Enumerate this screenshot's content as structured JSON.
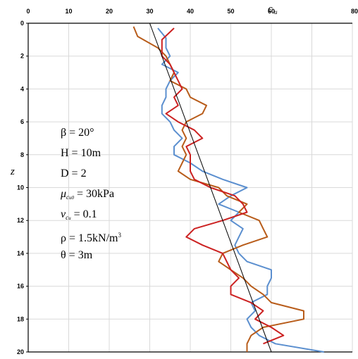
{
  "chart_data": {
    "type": "line",
    "xlabel": "c",
    "xlabel_sub": "u",
    "ylabel": "z",
    "xlim": [
      0,
      80
    ],
    "ylim": [
      0,
      20
    ],
    "y_inverted": true,
    "x_axis_position": "top",
    "x_ticks": [
      "0",
      "10",
      "20",
      "30",
      "40",
      "50",
      "60",
      "80"
    ],
    "y_ticks": [
      "0",
      "2",
      "4",
      "6",
      "8",
      "10",
      "12",
      "14",
      "16",
      "18",
      "20"
    ],
    "grid": true,
    "series": [
      {
        "color": "#5b8fcf",
        "points": [
          [
            32,
            0.3
          ],
          [
            34,
            0.9
          ],
          [
            34,
            1.5
          ],
          [
            35,
            2
          ],
          [
            33,
            2.5
          ],
          [
            37,
            3
          ],
          [
            35,
            3.5
          ],
          [
            34,
            4
          ],
          [
            34,
            4.5
          ],
          [
            33,
            5
          ],
          [
            33,
            5.5
          ],
          [
            35,
            6
          ],
          [
            36,
            6.5
          ],
          [
            38,
            7
          ],
          [
            36,
            7.5
          ],
          [
            36,
            8
          ],
          [
            40,
            8.5
          ],
          [
            43,
            9
          ],
          [
            48,
            9.5
          ],
          [
            54,
            10
          ],
          [
            50,
            10.5
          ],
          [
            47,
            11
          ],
          [
            52,
            11.5
          ],
          [
            50,
            12
          ],
          [
            53,
            12.5
          ],
          [
            52,
            13
          ],
          [
            51,
            13.5
          ],
          [
            52,
            14
          ],
          [
            54,
            14.5
          ],
          [
            60,
            15
          ],
          [
            60,
            15.5
          ],
          [
            59,
            16
          ],
          [
            59,
            16.5
          ],
          [
            55,
            17
          ],
          [
            56,
            17.5
          ],
          [
            54,
            18
          ],
          [
            55,
            18.5
          ],
          [
            57,
            19
          ],
          [
            61,
            19.5
          ],
          [
            73,
            20
          ]
        ]
      },
      {
        "color": "#b85c1a",
        "points": [
          [
            26,
            0.2
          ],
          [
            27,
            0.8
          ],
          [
            32,
            1.5
          ],
          [
            34,
            2
          ],
          [
            35,
            2.5
          ],
          [
            36,
            3
          ],
          [
            35,
            3.5
          ],
          [
            39,
            4
          ],
          [
            40,
            4.5
          ],
          [
            44,
            5
          ],
          [
            43,
            5.5
          ],
          [
            39,
            6
          ],
          [
            38,
            6.5
          ],
          [
            39,
            7
          ],
          [
            38,
            7.5
          ],
          [
            39,
            8
          ],
          [
            38,
            8.5
          ],
          [
            37,
            9
          ],
          [
            40,
            9.5
          ],
          [
            47,
            10
          ],
          [
            49,
            10.5
          ],
          [
            54,
            11
          ],
          [
            52,
            11.5
          ],
          [
            57,
            12
          ],
          [
            58,
            12.5
          ],
          [
            59,
            13
          ],
          [
            53,
            13.5
          ],
          [
            48,
            14
          ],
          [
            47,
            14.5
          ],
          [
            50,
            15
          ],
          [
            53,
            15.5
          ],
          [
            55,
            16
          ],
          [
            58,
            16.5
          ],
          [
            60,
            17
          ],
          [
            68,
            17.5
          ],
          [
            68,
            18
          ],
          [
            58,
            18.5
          ],
          [
            55,
            19
          ],
          [
            54,
            19.5
          ],
          [
            54,
            20
          ]
        ]
      },
      {
        "color": "#cc2222",
        "points": [
          [
            36,
            0.3
          ],
          [
            33,
            1
          ],
          [
            33,
            1.5
          ],
          [
            33,
            2
          ],
          [
            35,
            2.5
          ],
          [
            36,
            3
          ],
          [
            37,
            3.5
          ],
          [
            38,
            4
          ],
          [
            36,
            4.5
          ],
          [
            37,
            5
          ],
          [
            34,
            5.5
          ],
          [
            37,
            6
          ],
          [
            41,
            6.5
          ],
          [
            43,
            7
          ],
          [
            39,
            7.5
          ],
          [
            40,
            8
          ],
          [
            40,
            8.5
          ],
          [
            40,
            9
          ],
          [
            41,
            9.5
          ],
          [
            45,
            10
          ],
          [
            51,
            10.5
          ],
          [
            53,
            11
          ],
          [
            54,
            11.5
          ],
          [
            48,
            12
          ],
          [
            41,
            12.5
          ],
          [
            39,
            13
          ],
          [
            43,
            13.5
          ],
          [
            48,
            14
          ],
          [
            50,
            15
          ],
          [
            52,
            15.5
          ],
          [
            50,
            16
          ],
          [
            50,
            16.5
          ],
          [
            55,
            17
          ],
          [
            58,
            17.5
          ],
          [
            56,
            18
          ],
          [
            60,
            18.5
          ],
          [
            63,
            19
          ],
          [
            58,
            19.5
          ]
        ]
      },
      {
        "color": "#000000",
        "points": [
          [
            30,
            0
          ],
          [
            60,
            20
          ]
        ]
      }
    ]
  },
  "params": {
    "beta": "β = 20°",
    "H": "H = 10m",
    "D": "D = 2",
    "mu_sym": "μ",
    "mu_sub": "c",
    "mu_subsub": "u0",
    "mu_val": " = 30kPa",
    "v_sym": "v",
    "v_sub": "c",
    "v_subsub": "u",
    "v_val": " = 0.1",
    "rho_text": "ρ = 1.5kN/m",
    "rho_sup": "3",
    "theta": "θ = 3m"
  }
}
